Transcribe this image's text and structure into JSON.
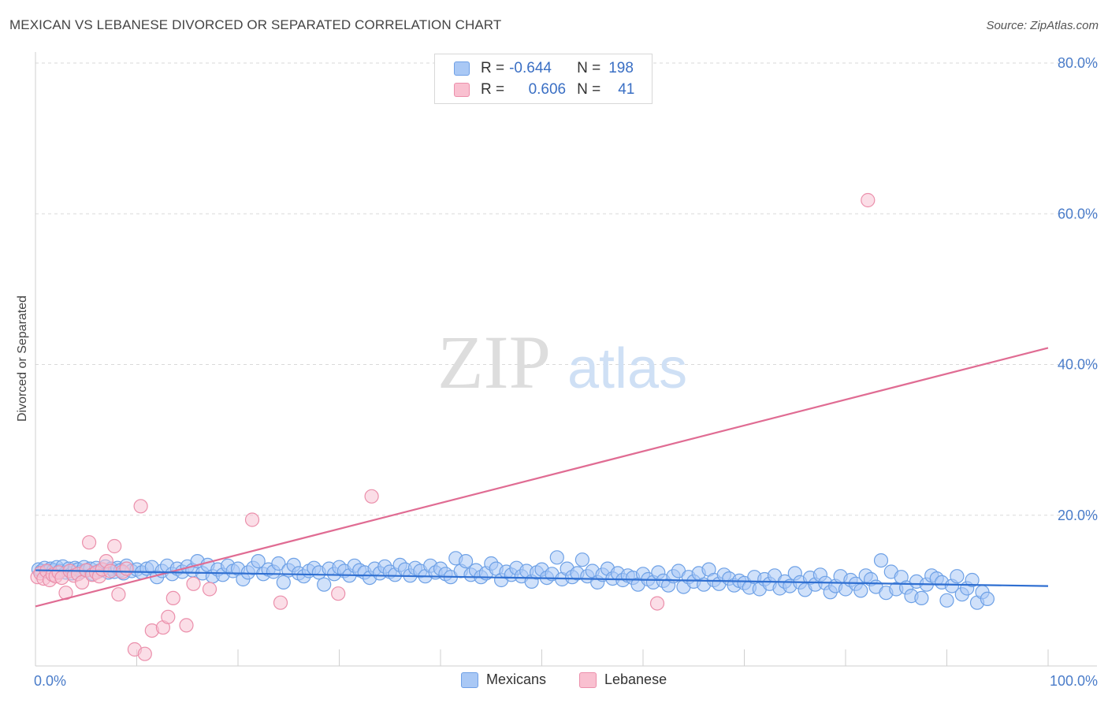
{
  "header": {
    "title": "MEXICAN VS LEBANESE DIVORCED OR SEPARATED CORRELATION CHART",
    "source": "Source: ZipAtlas.com"
  },
  "watermark": {
    "zip": "ZIP",
    "atlas": "atlas"
  },
  "legend": {
    "rows": [
      {
        "name": "Mexicans",
        "r_label": "R =",
        "r_value": "-0.644",
        "n_label": "N =",
        "n_value": "198",
        "fill": "#a9c8f5",
        "stroke": "#6fa0e6"
      },
      {
        "name": "Lebanese",
        "r_label": "R =",
        "r_value": "0.606",
        "n_label": "N =",
        "n_value": "41",
        "fill": "#f9c0d0",
        "stroke": "#ec8fab"
      }
    ]
  },
  "colors": {
    "mexicans_fill": "#a9c8f5",
    "mexicans_stroke": "#6ea1e6",
    "mexicans_line": "#2f6fd1",
    "lebanese_fill": "#f8c3d3",
    "lebanese_stroke": "#eb8fab",
    "lebanese_line": "#e06c93",
    "axis_text": "#4a7cc9",
    "grid": "#d9d9d9"
  },
  "chart_data": {
    "type": "scatter",
    "title": "MEXICAN VS LEBANESE DIVORCED OR SEPARATED CORRELATION CHART",
    "xlabel": "",
    "ylabel": "Divorced or Separated",
    "xlim": [
      0,
      100
    ],
    "ylim": [
      0,
      80
    ],
    "x_tick_labels": [
      "0.0%",
      "100.0%"
    ],
    "y_ticks": [
      {
        "value": 80,
        "label": "80.0%"
      },
      {
        "value": 60,
        "label": "60.0%"
      },
      {
        "value": 40,
        "label": "40.0%"
      },
      {
        "value": 20,
        "label": "20.0%"
      }
    ],
    "bottom_legend": [
      "Mexicans",
      "Lebanese"
    ],
    "series": [
      {
        "name": "Mexicans",
        "r": -0.644,
        "n": 198,
        "trend": {
          "x": [
            0,
            100
          ],
          "y": [
            12.7,
            10.6
          ]
        },
        "points": [
          [
            0.3,
            12.8
          ],
          [
            0.6,
            12.6
          ],
          [
            0.9,
            13.0
          ],
          [
            1.2,
            12.5
          ],
          [
            1.5,
            12.9
          ],
          [
            1.8,
            12.7
          ],
          [
            2.1,
            13.1
          ],
          [
            2.4,
            12.6
          ],
          [
            2.7,
            13.2
          ],
          [
            3.0,
            12.4
          ],
          [
            3.3,
            12.9
          ],
          [
            3.6,
            12.3
          ],
          [
            3.9,
            13.0
          ],
          [
            4.2,
            12.8
          ],
          [
            4.5,
            12.5
          ],
          [
            4.8,
            13.1
          ],
          [
            5.1,
            12.7
          ],
          [
            5.4,
            12.9
          ],
          [
            5.7,
            12.2
          ],
          [
            6.0,
            13.0
          ],
          [
            6.3,
            12.6
          ],
          [
            6.6,
            12.8
          ],
          [
            6.9,
            13.2
          ],
          [
            7.2,
            12.4
          ],
          [
            7.5,
            12.9
          ],
          [
            7.8,
            12.5
          ],
          [
            8.1,
            13.0
          ],
          [
            8.4,
            12.7
          ],
          [
            8.7,
            12.3
          ],
          [
            9.0,
            13.3
          ],
          [
            9.5,
            12.6
          ],
          [
            10.0,
            12.8
          ],
          [
            10.5,
            12.4
          ],
          [
            11.0,
            12.9
          ],
          [
            11.5,
            13.1
          ],
          [
            12.0,
            11.8
          ],
          [
            12.5,
            12.6
          ],
          [
            13.0,
            13.3
          ],
          [
            13.5,
            12.2
          ],
          [
            14.0,
            12.9
          ],
          [
            14.5,
            12.5
          ],
          [
            15.0,
            13.2
          ],
          [
            15.5,
            12.7
          ],
          [
            16.0,
            13.9
          ],
          [
            16.5,
            12.3
          ],
          [
            17.0,
            13.4
          ],
          [
            17.5,
            11.9
          ],
          [
            18.0,
            12.8
          ],
          [
            18.5,
            12.1
          ],
          [
            19.0,
            13.3
          ],
          [
            19.5,
            12.6
          ],
          [
            20.0,
            12.9
          ],
          [
            20.5,
            11.5
          ],
          [
            21.0,
            12.4
          ],
          [
            21.5,
            13.0
          ],
          [
            22.0,
            13.9
          ],
          [
            22.5,
            12.2
          ],
          [
            23.0,
            12.8
          ],
          [
            23.5,
            12.5
          ],
          [
            24.0,
            13.6
          ],
          [
            24.5,
            11.1
          ],
          [
            25.0,
            12.7
          ],
          [
            25.5,
            13.4
          ],
          [
            26.0,
            12.3
          ],
          [
            26.5,
            11.9
          ],
          [
            27.0,
            12.6
          ],
          [
            27.5,
            13.0
          ],
          [
            28.0,
            12.4
          ],
          [
            28.5,
            10.8
          ],
          [
            29.0,
            12.9
          ],
          [
            29.5,
            12.2
          ],
          [
            30.0,
            13.1
          ],
          [
            30.5,
            12.6
          ],
          [
            31.0,
            12.0
          ],
          [
            31.5,
            13.3
          ],
          [
            32.0,
            12.7
          ],
          [
            32.5,
            12.4
          ],
          [
            33.0,
            11.7
          ],
          [
            33.5,
            12.9
          ],
          [
            34.0,
            12.3
          ],
          [
            34.5,
            13.2
          ],
          [
            35.0,
            12.5
          ],
          [
            35.5,
            12.1
          ],
          [
            36.0,
            13.4
          ],
          [
            36.5,
            12.8
          ],
          [
            37.0,
            12.0
          ],
          [
            37.5,
            13.0
          ],
          [
            38.0,
            12.6
          ],
          [
            38.5,
            11.9
          ],
          [
            39.0,
            13.3
          ],
          [
            39.5,
            12.4
          ],
          [
            40.0,
            12.9
          ],
          [
            40.5,
            12.2
          ],
          [
            41.0,
            11.8
          ],
          [
            41.5,
            14.3
          ],
          [
            42.0,
            12.6
          ],
          [
            42.5,
            13.9
          ],
          [
            43.0,
            12.1
          ],
          [
            43.5,
            12.7
          ],
          [
            44.0,
            11.8
          ],
          [
            44.5,
            12.3
          ],
          [
            45.0,
            13.6
          ],
          [
            45.5,
            12.9
          ],
          [
            46.0,
            11.4
          ],
          [
            46.5,
            12.5
          ],
          [
            47.0,
            12.1
          ],
          [
            47.5,
            13.0
          ],
          [
            48.0,
            11.9
          ],
          [
            48.5,
            12.6
          ],
          [
            49.0,
            11.2
          ],
          [
            49.5,
            12.4
          ],
          [
            50.0,
            12.8
          ],
          [
            50.5,
            11.7
          ],
          [
            51.0,
            12.2
          ],
          [
            51.5,
            14.4
          ],
          [
            52.0,
            11.5
          ],
          [
            52.5,
            12.9
          ],
          [
            53.0,
            11.8
          ],
          [
            53.5,
            12.3
          ],
          [
            54.0,
            14.1
          ],
          [
            54.5,
            11.9
          ],
          [
            55.0,
            12.6
          ],
          [
            55.5,
            11.1
          ],
          [
            56.0,
            12.1
          ],
          [
            56.5,
            12.9
          ],
          [
            57.0,
            11.6
          ],
          [
            57.5,
            12.3
          ],
          [
            58.0,
            11.4
          ],
          [
            58.5,
            12.0
          ],
          [
            59.0,
            11.7
          ],
          [
            59.5,
            10.8
          ],
          [
            60.0,
            12.2
          ],
          [
            60.5,
            11.5
          ],
          [
            61.0,
            11.1
          ],
          [
            61.5,
            12.4
          ],
          [
            62.0,
            11.3
          ],
          [
            62.5,
            10.7
          ],
          [
            63.0,
            11.9
          ],
          [
            63.5,
            12.6
          ],
          [
            64.0,
            10.5
          ],
          [
            64.5,
            11.8
          ],
          [
            65.0,
            11.2
          ],
          [
            65.5,
            12.3
          ],
          [
            66.0,
            10.8
          ],
          [
            66.5,
            12.8
          ],
          [
            67.0,
            11.4
          ],
          [
            67.5,
            10.9
          ],
          [
            68.0,
            12.1
          ],
          [
            68.5,
            11.6
          ],
          [
            69.0,
            10.7
          ],
          [
            69.5,
            11.3
          ],
          [
            70.0,
            11.0
          ],
          [
            70.5,
            10.4
          ],
          [
            71.0,
            11.8
          ],
          [
            71.5,
            10.2
          ],
          [
            72.0,
            11.5
          ],
          [
            72.5,
            10.9
          ],
          [
            73.0,
            12.0
          ],
          [
            73.5,
            10.3
          ],
          [
            74.0,
            11.2
          ],
          [
            74.5,
            10.6
          ],
          [
            75.0,
            12.3
          ],
          [
            75.5,
            11.1
          ],
          [
            76.0,
            10.1
          ],
          [
            76.5,
            11.7
          ],
          [
            77.0,
            10.8
          ],
          [
            77.5,
            12.1
          ],
          [
            78.0,
            11.0
          ],
          [
            78.5,
            9.8
          ],
          [
            79.0,
            10.6
          ],
          [
            79.5,
            11.9
          ],
          [
            80.0,
            10.2
          ],
          [
            80.5,
            11.4
          ],
          [
            81.0,
            10.9
          ],
          [
            81.5,
            10.0
          ],
          [
            82.0,
            12.0
          ],
          [
            82.5,
            11.5
          ],
          [
            83.0,
            10.5
          ],
          [
            83.5,
            14.0
          ],
          [
            84.0,
            9.7
          ],
          [
            84.5,
            12.5
          ],
          [
            85.0,
            10.2
          ],
          [
            85.5,
            11.8
          ],
          [
            86.0,
            10.4
          ],
          [
            86.5,
            9.3
          ],
          [
            87.0,
            11.2
          ],
          [
            87.5,
            9.0
          ],
          [
            88.0,
            10.8
          ],
          [
            88.5,
            12.0
          ],
          [
            89.0,
            11.6
          ],
          [
            89.5,
            11.1
          ],
          [
            90.0,
            8.7
          ],
          [
            90.5,
            10.6
          ],
          [
            91.0,
            11.9
          ],
          [
            91.5,
            9.5
          ],
          [
            92.0,
            10.3
          ],
          [
            92.5,
            11.4
          ],
          [
            93.0,
            8.4
          ],
          [
            93.5,
            9.8
          ],
          [
            94.0,
            8.9
          ]
        ]
      },
      {
        "name": "Lebanese",
        "r": 0.606,
        "n": 41,
        "trend": {
          "x": [
            0,
            100
          ],
          "y": [
            7.9,
            42.2
          ]
        },
        "points": [
          [
            0.2,
            11.8
          ],
          [
            0.5,
            12.3
          ],
          [
            0.8,
            11.6
          ],
          [
            1.1,
            12.6
          ],
          [
            1.4,
            11.4
          ],
          [
            1.7,
            12.1
          ],
          [
            2.0,
            11.9
          ],
          [
            2.3,
            12.4
          ],
          [
            2.6,
            11.7
          ],
          [
            3.0,
            9.7
          ],
          [
            3.4,
            12.6
          ],
          [
            3.8,
            12.0
          ],
          [
            4.2,
            12.2
          ],
          [
            4.6,
            11.1
          ],
          [
            5.0,
            12.7
          ],
          [
            5.3,
            16.4
          ],
          [
            5.6,
            12.1
          ],
          [
            6.0,
            12.4
          ],
          [
            6.3,
            11.9
          ],
          [
            6.6,
            12.8
          ],
          [
            7.0,
            13.9
          ],
          [
            7.4,
            12.6
          ],
          [
            7.8,
            15.9
          ],
          [
            8.2,
            9.5
          ],
          [
            8.6,
            12.5
          ],
          [
            9.0,
            12.9
          ],
          [
            9.8,
            2.2
          ],
          [
            10.4,
            21.2
          ],
          [
            10.8,
            1.6
          ],
          [
            11.5,
            4.7
          ],
          [
            12.6,
            5.1
          ],
          [
            13.1,
            6.5
          ],
          [
            13.6,
            9.0
          ],
          [
            14.9,
            5.4
          ],
          [
            15.6,
            10.9
          ],
          [
            17.2,
            10.2
          ],
          [
            21.4,
            19.4
          ],
          [
            24.2,
            8.4
          ],
          [
            29.9,
            9.6
          ],
          [
            33.2,
            22.5
          ],
          [
            61.4,
            8.3
          ],
          [
            82.2,
            61.8
          ]
        ]
      }
    ]
  }
}
